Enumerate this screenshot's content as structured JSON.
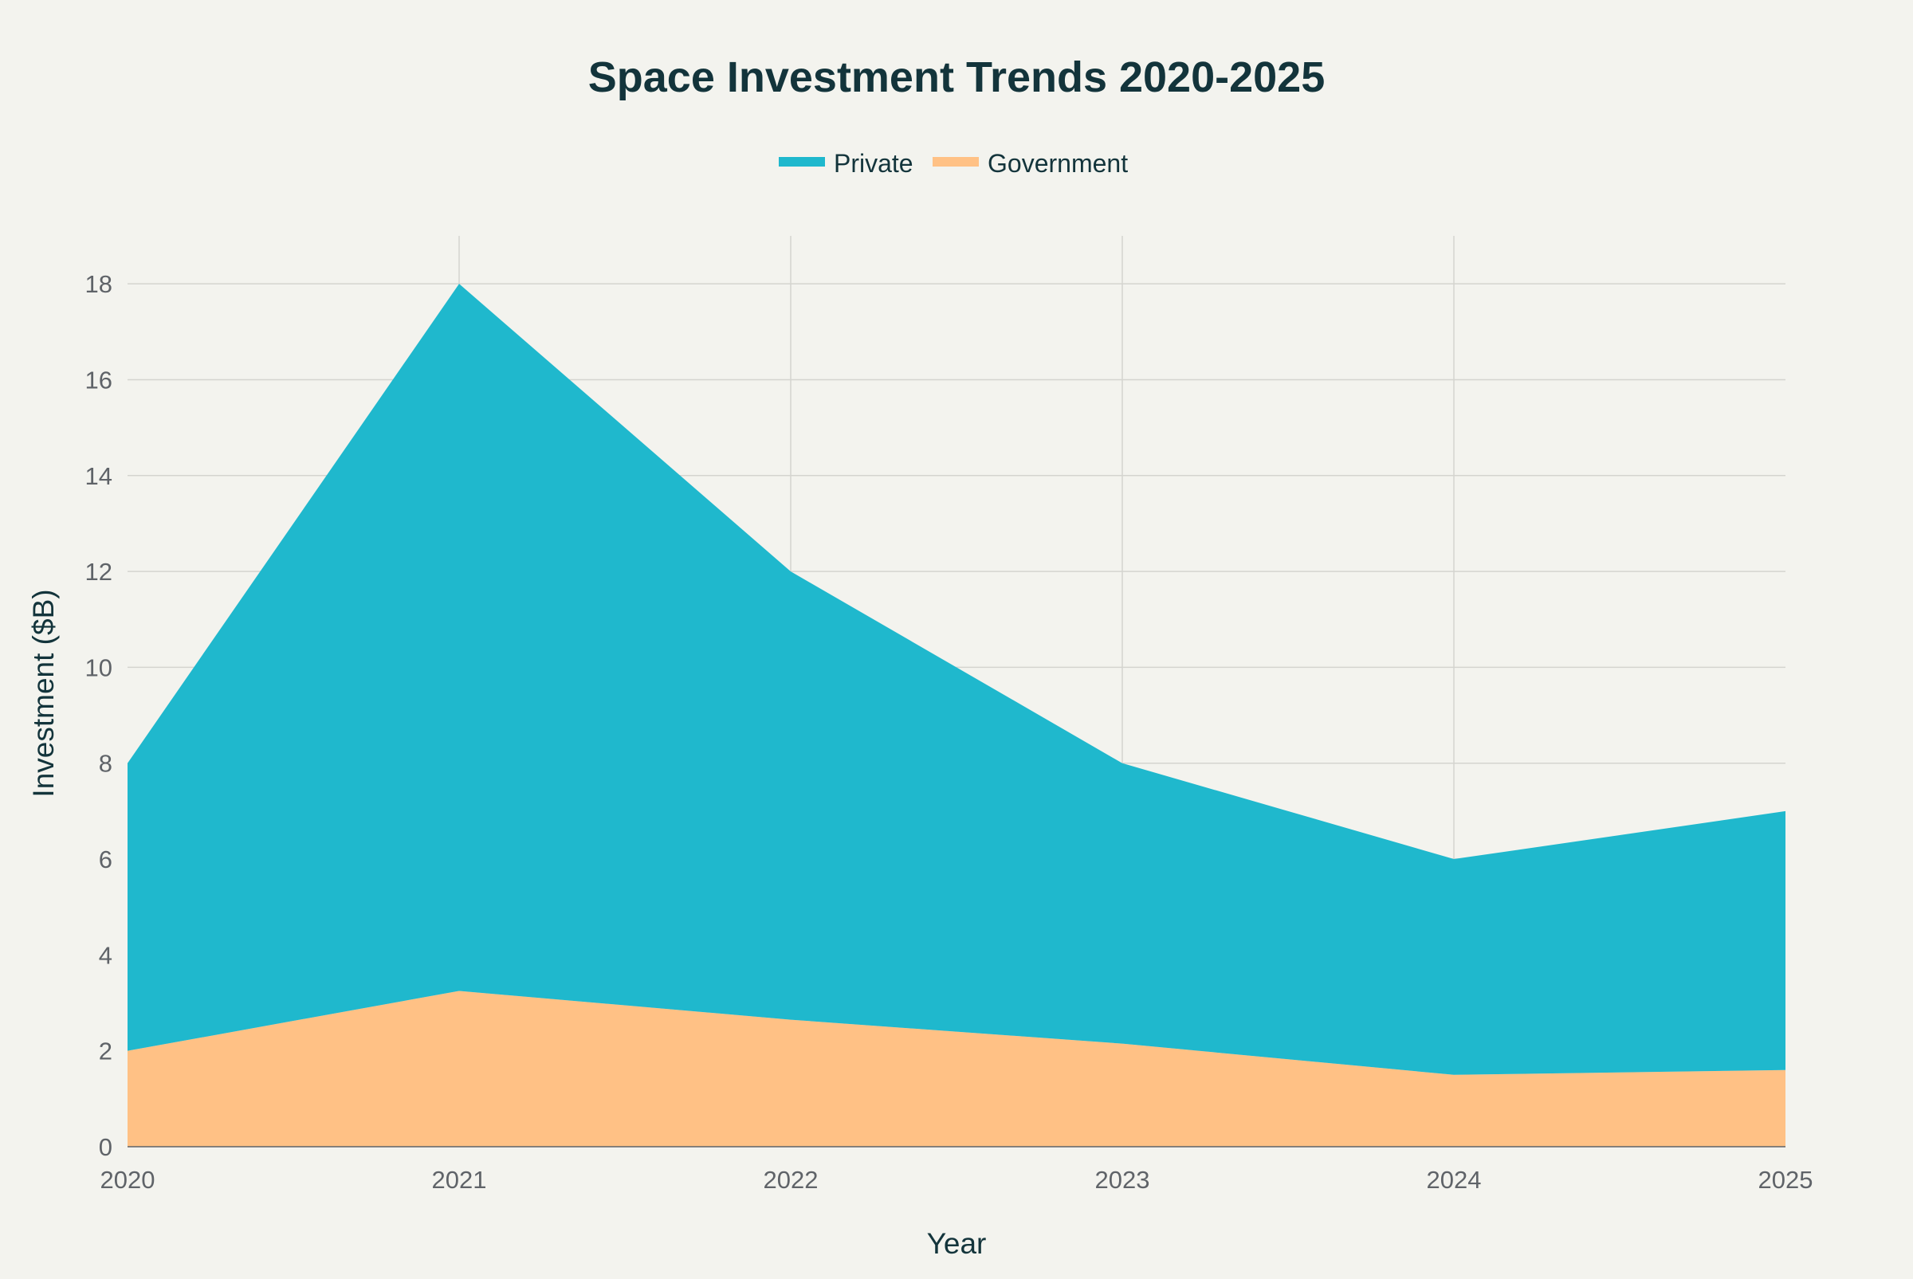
{
  "chart_data": {
    "type": "area",
    "stacked": true,
    "title": "Space Investment Trends 2020-2025",
    "xlabel": "Year",
    "ylabel": "Investment ($B)",
    "x": [
      "2020",
      "2021",
      "2022",
      "2023",
      "2024",
      "2025"
    ],
    "series": [
      {
        "name": "Government",
        "values": [
          2.0,
          3.25,
          2.65,
          2.15,
          1.5,
          1.6
        ],
        "color": "#ffc185"
      },
      {
        "name": "Private",
        "values": [
          6.0,
          14.75,
          9.35,
          5.85,
          4.5,
          5.4
        ],
        "color": "#1fb8cd"
      }
    ],
    "stack_totals": [
      8,
      18,
      12,
      8,
      6,
      7
    ],
    "ylim": [
      0,
      19
    ],
    "yticks": [
      0,
      2,
      4,
      6,
      8,
      10,
      12,
      14,
      16,
      18
    ],
    "grid": true,
    "legend": {
      "placement": "top-center",
      "order": [
        "Private",
        "Government"
      ]
    }
  }
}
